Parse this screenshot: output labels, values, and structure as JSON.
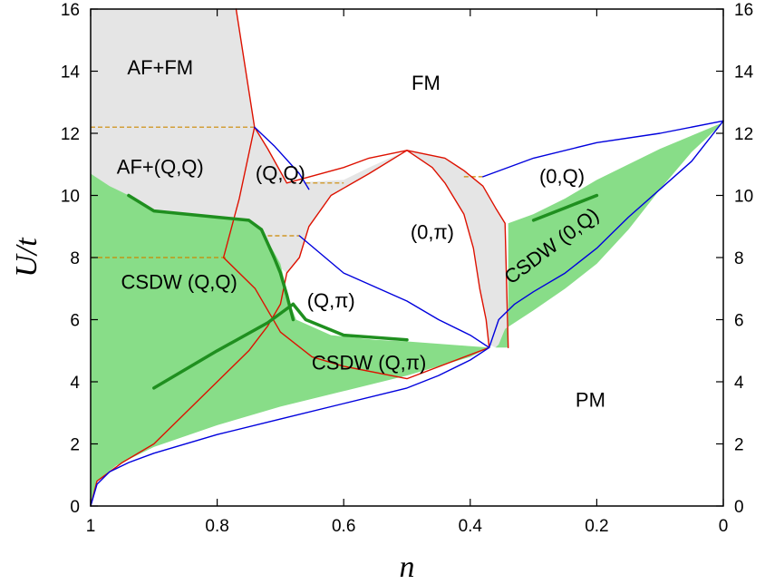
{
  "chart_data": {
    "type": "phase-diagram",
    "xlabel": "n",
    "ylabel": "U/t",
    "xlim": [
      1,
      0
    ],
    "ylim": [
      0,
      16
    ],
    "x_ticks": [
      1,
      0.8,
      0.6,
      0.4,
      0.2,
      0
    ],
    "y_ticks": [
      0,
      2,
      4,
      6,
      8,
      10,
      12,
      14,
      16
    ],
    "x_tick_labels": [
      "1",
      "0.8",
      "0.6",
      "0.4",
      "0.2",
      "0"
    ],
    "y_tick_labels": [
      "0",
      "2",
      "4",
      "6",
      "8",
      "10",
      "12",
      "14",
      "16"
    ],
    "colors": {
      "green_fill": "#88dd88",
      "grey_fill": "#e5e5e5",
      "red_line": "#dd1100",
      "blue_line": "#0000dd",
      "dark_green_line": "#1f8f1f",
      "dashed_line": "#cc8800"
    },
    "region_labels": [
      {
        "text": "AF+FM",
        "n": 0.89,
        "u": 13.9
      },
      {
        "text": "FM",
        "n": 0.47,
        "u": 13.4
      },
      {
        "text": "AF+(Q,Q)",
        "n": 0.89,
        "u": 10.7
      },
      {
        "text": "(Q,Q)",
        "n": 0.7,
        "u": 10.5
      },
      {
        "text": "(0,Q)",
        "n": 0.255,
        "u": 10.4
      },
      {
        "text": "(0,π)",
        "n": 0.46,
        "u": 8.6
      },
      {
        "text": "CSDW (Q,Q)",
        "n": 0.86,
        "u": 7.0
      },
      {
        "text": "(Q,π)",
        "n": 0.62,
        "u": 6.4
      },
      {
        "text": "CSDW (Q,π)",
        "n": 0.56,
        "u": 4.4
      },
      {
        "text": "CSDW (0,Q)",
        "n": 0.265,
        "u": 8.2,
        "rotate": -37,
        "small": true
      },
      {
        "text": "PM",
        "n": 0.21,
        "u": 3.2
      }
    ],
    "regions": {
      "grey": [
        {
          "name": "af-fm-region",
          "points": [
            [
              1,
              16
            ],
            [
              0.77,
              16
            ],
            [
              0.741,
              12.2
            ],
            [
              0.745,
              11.6
            ],
            [
              0.765,
              9.9
            ],
            [
              0.785,
              8.4
            ],
            [
              0.79,
              8.0
            ],
            [
              0.9,
              8.0
            ],
            [
              1,
              8.0
            ]
          ]
        },
        {
          "name": "qq-region",
          "points": [
            [
              0.741,
              12.2
            ],
            [
              0.72,
              11.5
            ],
            [
              0.69,
              10.4
            ],
            [
              0.6,
              10.5
            ],
            [
              0.56,
              10.9
            ],
            [
              0.5,
              11.45
            ],
            [
              0.44,
              11.2
            ],
            [
              0.41,
              10.8
            ],
            [
              0.38,
              10.3
            ],
            [
              0.36,
              9.6
            ],
            [
              0.345,
              9.1
            ],
            [
              0.34,
              5.1
            ],
            [
              0.36,
              5.1
            ],
            [
              0.37,
              5.2
            ],
            [
              0.375,
              6.0
            ],
            [
              0.385,
              7.0
            ],
            [
              0.395,
              8.3
            ],
            [
              0.41,
              9.4
            ],
            [
              0.44,
              10.4
            ],
            [
              0.46,
              10.9
            ],
            [
              0.5,
              11.45
            ],
            [
              0.56,
              10.7
            ],
            [
              0.62,
              10.0
            ],
            [
              0.655,
              9.0
            ],
            [
              0.67,
              8.0
            ],
            [
              0.69,
              7.5
            ],
            [
              0.72,
              8.0
            ],
            [
              0.785,
              8.0
            ],
            [
              0.765,
              9.9
            ],
            [
              0.745,
              11.6
            ]
          ]
        }
      ],
      "green": [
        {
          "name": "csdw-qq-region",
          "points": [
            [
              1,
              10.7
            ],
            [
              0.97,
              10.3
            ],
            [
              0.93,
              9.9
            ],
            [
              0.9,
              9.5
            ],
            [
              0.8,
              9.3
            ],
            [
              0.75,
              9.2
            ],
            [
              0.73,
              8.9
            ],
            [
              0.7,
              7.8
            ],
            [
              0.685,
              6.5
            ],
            [
              0.675,
              6.0
            ],
            [
              0.62,
              5.5
            ],
            [
              0.55,
              5.35
            ],
            [
              0.5,
              5.3
            ],
            [
              0.37,
              5.1
            ],
            [
              0.4,
              4.8
            ],
            [
              0.5,
              4.2
            ],
            [
              0.6,
              3.7
            ],
            [
              0.7,
              3.2
            ],
            [
              0.8,
              2.6
            ],
            [
              0.9,
              1.9
            ],
            [
              0.96,
              1.3
            ],
            [
              0.99,
              0.8
            ],
            [
              1,
              0
            ]
          ]
        },
        {
          "name": "csdw-0q-region",
          "points": [
            [
              0.34,
              9.1
            ],
            [
              0.3,
              9.4
            ],
            [
              0.25,
              9.9
            ],
            [
              0.2,
              10.5
            ],
            [
              0.1,
              11.5
            ],
            [
              0,
              12.35
            ],
            [
              0.05,
              11.4
            ],
            [
              0.1,
              10.2
            ],
            [
              0.15,
              8.9
            ],
            [
              0.2,
              7.8
            ],
            [
              0.25,
              7.0
            ],
            [
              0.3,
              6.3
            ],
            [
              0.33,
              5.9
            ],
            [
              0.345,
              5.7
            ],
            [
              0.355,
              5.2
            ],
            [
              0.36,
              5.1
            ],
            [
              0.34,
              5.1
            ]
          ]
        }
      ]
    },
    "lines": [
      {
        "name": "red-boundary-left",
        "color": "red",
        "width": 1.4,
        "points": [
          [
            0.77,
            16
          ],
          [
            0.741,
            12.2
          ],
          [
            0.765,
            9.9
          ],
          [
            0.79,
            8.0
          ],
          [
            0.74,
            7.0
          ],
          [
            0.7,
            5.6
          ],
          [
            0.65,
            4.8
          ],
          [
            0.6,
            4.5
          ],
          [
            0.5,
            4.1
          ],
          [
            0.37,
            5.1
          ]
        ]
      },
      {
        "name": "red-boundary-lower",
        "color": "red",
        "width": 1.4,
        "points": [
          [
            1,
            0
          ],
          [
            0.99,
            0.8
          ],
          [
            0.95,
            1.4
          ],
          [
            0.9,
            2.0
          ],
          [
            0.85,
            3.0
          ],
          [
            0.8,
            4.0
          ],
          [
            0.75,
            5.0
          ],
          [
            0.72,
            5.8
          ],
          [
            0.7,
            6.5
          ],
          [
            0.69,
            7.5
          ],
          [
            0.67,
            8.0
          ],
          [
            0.655,
            9.0
          ],
          [
            0.62,
            10.0
          ],
          [
            0.56,
            10.7
          ],
          [
            0.5,
            11.45
          ]
        ]
      },
      {
        "name": "red-dome-outer",
        "color": "red",
        "width": 1.4,
        "points": [
          [
            0.69,
            10.4
          ],
          [
            0.6,
            10.9
          ],
          [
            0.56,
            11.2
          ],
          [
            0.5,
            11.45
          ],
          [
            0.44,
            11.2
          ],
          [
            0.41,
            10.8
          ],
          [
            0.38,
            10.3
          ],
          [
            0.36,
            9.6
          ],
          [
            0.345,
            9.1
          ],
          [
            0.34,
            5.1
          ]
        ]
      },
      {
        "name": "red-dome-inner",
        "color": "red",
        "width": 1.4,
        "points": [
          [
            0.5,
            11.45
          ],
          [
            0.46,
            10.9
          ],
          [
            0.44,
            10.4
          ],
          [
            0.41,
            9.4
          ],
          [
            0.395,
            8.3
          ],
          [
            0.385,
            7.0
          ],
          [
            0.375,
            6.0
          ],
          [
            0.37,
            5.1
          ]
        ]
      },
      {
        "name": "red-qq-left",
        "color": "red",
        "width": 1.4,
        "points": [
          [
            0.741,
            12.2
          ],
          [
            0.72,
            11.5
          ],
          [
            0.69,
            10.4
          ]
        ]
      },
      {
        "name": "blue-boundary-lower",
        "color": "blue",
        "width": 1.4,
        "points": [
          [
            1,
            0
          ],
          [
            0.99,
            0.7
          ],
          [
            0.97,
            1.1
          ],
          [
            0.94,
            1.4
          ],
          [
            0.9,
            1.7
          ],
          [
            0.8,
            2.3
          ],
          [
            0.7,
            2.8
          ],
          [
            0.6,
            3.3
          ],
          [
            0.5,
            3.8
          ],
          [
            0.45,
            4.2
          ],
          [
            0.4,
            4.7
          ],
          [
            0.37,
            5.1
          ]
        ]
      },
      {
        "name": "blue-boundary-fm-left",
        "color": "blue",
        "width": 1.4,
        "points": [
          [
            0.741,
            12.2
          ],
          [
            0.71,
            11.6
          ],
          [
            0.67,
            10.7
          ],
          [
            0.655,
            10.2
          ]
        ]
      },
      {
        "name": "blue-boundary-fm-center",
        "color": "blue",
        "width": 1.4,
        "points": [
          [
            0.67,
            8.7
          ],
          [
            0.6,
            7.5
          ],
          [
            0.5,
            6.6
          ],
          [
            0.45,
            6.0
          ],
          [
            0.4,
            5.5
          ],
          [
            0.37,
            5.1
          ]
        ]
      },
      {
        "name": "blue-boundary-right-upper",
        "color": "blue",
        "width": 1.4,
        "points": [
          [
            0.38,
            10.6
          ],
          [
            0.3,
            11.2
          ],
          [
            0.2,
            11.7
          ],
          [
            0.1,
            12.0
          ],
          [
            0,
            12.4
          ]
        ]
      },
      {
        "name": "blue-boundary-right-lower",
        "color": "blue",
        "width": 1.4,
        "points": [
          [
            0.37,
            5.1
          ],
          [
            0.355,
            6.0
          ],
          [
            0.33,
            6.5
          ],
          [
            0.3,
            6.9
          ],
          [
            0.25,
            7.5
          ],
          [
            0.2,
            8.3
          ],
          [
            0.15,
            9.3
          ],
          [
            0.1,
            10.2
          ],
          [
            0.05,
            11.1
          ],
          [
            0,
            12.4
          ]
        ]
      },
      {
        "name": "green-thick-qq",
        "color": "dark_green",
        "width": 3.5,
        "points": [
          [
            0.94,
            10.0
          ],
          [
            0.9,
            9.5
          ],
          [
            0.8,
            9.3
          ],
          [
            0.75,
            9.2
          ],
          [
            0.73,
            8.9
          ],
          [
            0.71,
            8.0
          ],
          [
            0.7,
            7.5
          ],
          [
            0.69,
            6.8
          ],
          [
            0.68,
            6.0
          ]
        ]
      },
      {
        "name": "green-thick-qpi-upper",
        "color": "dark_green",
        "width": 3.5,
        "points": [
          [
            0.68,
            6.5
          ],
          [
            0.66,
            6.0
          ],
          [
            0.6,
            5.5
          ],
          [
            0.5,
            5.35
          ]
        ]
      },
      {
        "name": "green-thick-qpi-lower",
        "color": "dark_green",
        "width": 3.5,
        "points": [
          [
            0.9,
            3.8
          ],
          [
            0.8,
            5.0
          ],
          [
            0.72,
            5.9
          ],
          [
            0.68,
            6.5
          ]
        ]
      },
      {
        "name": "green-thick-0q",
        "color": "dark_green",
        "width": 3.5,
        "points": [
          [
            0.3,
            9.2
          ],
          [
            0.25,
            9.6
          ],
          [
            0.2,
            10.0
          ]
        ]
      }
    ],
    "dashed_lines": [
      {
        "name": "dashed-12",
        "points": [
          [
            1,
            12.2
          ],
          [
            0.741,
            12.2
          ]
        ]
      },
      {
        "name": "dashed-8",
        "points": [
          [
            1,
            8.0
          ],
          [
            0.785,
            8.0
          ]
        ]
      },
      {
        "name": "dashed-qq-upper",
        "points": [
          [
            0.66,
            10.4
          ],
          [
            0.6,
            10.4
          ]
        ]
      },
      {
        "name": "dashed-qq-lower",
        "points": [
          [
            0.72,
            8.7
          ],
          [
            0.67,
            8.7
          ]
        ]
      },
      {
        "name": "dashed-right",
        "points": [
          [
            0.41,
            10.6
          ],
          [
            0.38,
            10.6
          ]
        ]
      }
    ]
  }
}
